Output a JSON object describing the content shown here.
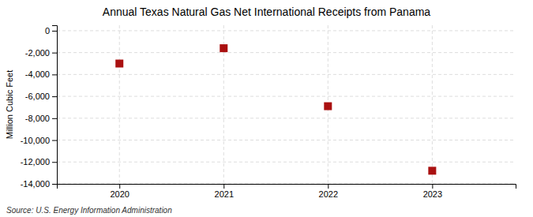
{
  "chart_data": {
    "type": "scatter",
    "title": "Annual Texas Natural Gas Net International Receipts from Panama",
    "ylabel": "Million Cubic Feet",
    "source": "Source: U.S. Energy Information Administration",
    "x": [
      2020,
      2021,
      2022,
      2023
    ],
    "values": [
      -3000,
      -1600,
      -6900,
      -12800
    ],
    "color": "#aa1111",
    "marker": "square",
    "xlim": [
      2019.4,
      2023.8
    ],
    "xticks": [
      2020,
      2021,
      2022,
      2023
    ],
    "ylim": [
      -14000,
      500
    ],
    "yticks": [
      0,
      {
        "value": -2000,
        "label": "-2,000"
      },
      {
        "value": -4000,
        "label": "-4,000"
      },
      {
        "value": -6000,
        "label": "-6,000"
      },
      {
        "value": -8000,
        "label": "-8,000"
      },
      {
        "value": -10000,
        "label": "-10,000"
      },
      {
        "value": -12000,
        "label": "-12,000"
      },
      {
        "value": -14000,
        "label": "-14,000"
      }
    ],
    "grid": true
  }
}
